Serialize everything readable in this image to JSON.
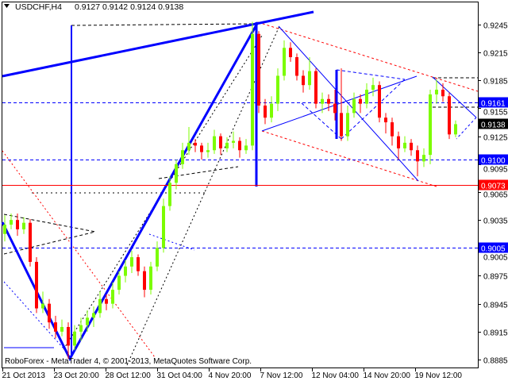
{
  "header": {
    "symbol": "USDCHF,H4",
    "ohlc": "0.9127 0.9142 0.9124 0.9138"
  },
  "footer": {
    "copyright": "RoboForex - MetaTrader 4, © 2001-2013, MetaQuotes Software Corp."
  },
  "chart_data": {
    "type": "candlestick",
    "title": "USDCHF,H4",
    "ylim": [
      0.8875,
      0.9265
    ],
    "grid": false,
    "colors": {
      "up": "#7cfc00",
      "down": "#ff0000",
      "axis": "#000000"
    },
    "y_ticks": [
      "0.9245",
      "0.9215",
      "0.9185",
      "0.9155",
      "0.9125",
      "0.9095",
      "0.9065",
      "0.9035",
      "0.9005",
      "0.8975",
      "0.8945",
      "0.8915",
      "0.8885"
    ],
    "x_ticks": [
      "21 Oct 2013",
      "23 Oct 20:00",
      "28 Oct 12:00",
      "31 Oct 04:00",
      "4 Nov 20:00",
      "7 Nov 12:00",
      "12 Nov 04:00",
      "14 Nov 20:00",
      "19 Nov 12:00"
    ],
    "levels": [
      {
        "price": "0.9161",
        "color": "#0000ff",
        "style": "dashed"
      },
      {
        "price": "0.9100",
        "color": "#0000ff",
        "style": "dashed"
      },
      {
        "price": "0.9073",
        "color": "#ff0000",
        "style": "solid"
      },
      {
        "price": "0.9005",
        "color": "#0000ff",
        "style": "dashed"
      }
    ],
    "current_price": {
      "price": "0.9138",
      "color": "#000000"
    },
    "candles_ohlc": [
      [
        0.902,
        0.904,
        0.9012,
        0.903
      ],
      [
        0.903,
        0.9042,
        0.9025,
        0.9035
      ],
      [
        0.9035,
        0.9042,
        0.9018,
        0.9025
      ],
      [
        0.9025,
        0.9038,
        0.902,
        0.9032
      ],
      [
        0.9032,
        0.9036,
        0.8985,
        0.899
      ],
      [
        0.899,
        0.8995,
        0.8935,
        0.894
      ],
      [
        0.894,
        0.8958,
        0.8935,
        0.8945
      ],
      [
        0.8945,
        0.895,
        0.8918,
        0.8925
      ],
      [
        0.8925,
        0.8932,
        0.8908,
        0.8915
      ],
      [
        0.8915,
        0.8928,
        0.891,
        0.892
      ],
      [
        0.892,
        0.8925,
        0.8886,
        0.89
      ],
      [
        0.89,
        0.8922,
        0.8895,
        0.8915
      ],
      [
        0.8915,
        0.893,
        0.8905,
        0.8922
      ],
      [
        0.8922,
        0.8938,
        0.8915,
        0.893
      ],
      [
        0.893,
        0.8942,
        0.892,
        0.8935
      ],
      [
        0.8935,
        0.8958,
        0.893,
        0.895
      ],
      [
        0.895,
        0.8955,
        0.8938,
        0.8945
      ],
      [
        0.8945,
        0.8968,
        0.894,
        0.896
      ],
      [
        0.896,
        0.898,
        0.8955,
        0.8975
      ],
      [
        0.8975,
        0.8992,
        0.8968,
        0.8985
      ],
      [
        0.8985,
        0.9002,
        0.8978,
        0.8995
      ],
      [
        0.8995,
        0.8998,
        0.8975,
        0.898
      ],
      [
        0.898,
        0.8985,
        0.8952,
        0.896
      ],
      [
        0.896,
        0.899,
        0.8955,
        0.8985
      ],
      [
        0.8985,
        0.9012,
        0.898,
        0.9005
      ],
      [
        0.9005,
        0.9058,
        0.9,
        0.905
      ],
      [
        0.905,
        0.9082,
        0.9045,
        0.9075
      ],
      [
        0.9075,
        0.91,
        0.9068,
        0.9095
      ],
      [
        0.9095,
        0.9118,
        0.909,
        0.911
      ],
      [
        0.911,
        0.9135,
        0.9105,
        0.9118
      ],
      [
        0.9118,
        0.9122,
        0.9108,
        0.9115
      ],
      [
        0.9115,
        0.9118,
        0.91,
        0.9108
      ],
      [
        0.9108,
        0.9118,
        0.9102,
        0.911
      ],
      [
        0.911,
        0.9132,
        0.9106,
        0.9125
      ],
      [
        0.9125,
        0.9128,
        0.9105,
        0.9112
      ],
      [
        0.9112,
        0.9124,
        0.9108,
        0.9118
      ],
      [
        0.9118,
        0.913,
        0.9112,
        0.912
      ],
      [
        0.912,
        0.9124,
        0.9102,
        0.911
      ],
      [
        0.911,
        0.9122,
        0.9106,
        0.9115
      ],
      [
        0.9115,
        0.9248,
        0.911,
        0.9235
      ],
      [
        0.9235,
        0.9238,
        0.915,
        0.9158
      ],
      [
        0.9158,
        0.9165,
        0.9138,
        0.9145
      ],
      [
        0.9145,
        0.9168,
        0.914,
        0.916
      ],
      [
        0.916,
        0.9198,
        0.9152,
        0.919
      ],
      [
        0.919,
        0.9228,
        0.9185,
        0.922
      ],
      [
        0.922,
        0.9226,
        0.9205,
        0.921
      ],
      [
        0.921,
        0.9214,
        0.9185,
        0.919
      ],
      [
        0.919,
        0.9196,
        0.9172,
        0.918
      ],
      [
        0.918,
        0.921,
        0.9175,
        0.9195
      ],
      [
        0.9195,
        0.9198,
        0.9155,
        0.916
      ],
      [
        0.916,
        0.9172,
        0.915,
        0.9165
      ],
      [
        0.9165,
        0.917,
        0.9152,
        0.916
      ],
      [
        0.916,
        0.9175,
        0.9142,
        0.915
      ],
      [
        0.915,
        0.9198,
        0.912,
        0.9125
      ],
      [
        0.9125,
        0.9158,
        0.912,
        0.915
      ],
      [
        0.915,
        0.9172,
        0.9145,
        0.9165
      ],
      [
        0.9165,
        0.917,
        0.915,
        0.916
      ],
      [
        0.916,
        0.9182,
        0.9155,
        0.9175
      ],
      [
        0.9175,
        0.9188,
        0.9168,
        0.918
      ],
      [
        0.918,
        0.9184,
        0.914,
        0.9145
      ],
      [
        0.9145,
        0.915,
        0.9128,
        0.914
      ],
      [
        0.914,
        0.9145,
        0.9115,
        0.9125
      ],
      [
        0.9125,
        0.913,
        0.91,
        0.9112
      ],
      [
        0.9112,
        0.9125,
        0.9108,
        0.9118
      ],
      [
        0.9118,
        0.9122,
        0.9104,
        0.911
      ],
      [
        0.911,
        0.9115,
        0.9082,
        0.9098
      ],
      [
        0.9098,
        0.9112,
        0.9092,
        0.9105
      ],
      [
        0.9105,
        0.9175,
        0.9095,
        0.917
      ],
      [
        0.917,
        0.9186,
        0.916,
        0.9175
      ],
      [
        0.9175,
        0.9182,
        0.9162,
        0.9168
      ],
      [
        0.9168,
        0.9172,
        0.9122,
        0.9127
      ],
      [
        0.9127,
        0.9142,
        0.9124,
        0.9138
      ]
    ]
  }
}
